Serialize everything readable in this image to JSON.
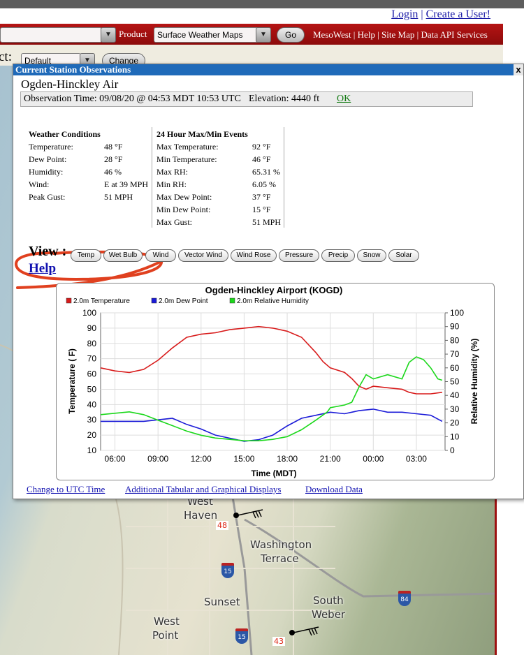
{
  "header": {
    "login": "Login",
    "create_user": "Create a User!",
    "product_label": "Product",
    "product_value": "Surface Weather Maps",
    "go": "Go",
    "links": "MesoWest | Help | Site Map | Data API Services",
    "select_label": "ct:",
    "select_value": "Default",
    "change": "Change"
  },
  "popup": {
    "title": "Current Station Observations",
    "close": "x",
    "station_name": "Ogden-Hinckley Air",
    "obs_time": "Observation Time: 09/08/20 @ 04:53 MDT  10:53 UTC",
    "elevation": "Elevation: 4440 ft",
    "ok": "OK",
    "conditions_header": "Weather Conditions",
    "conditions": [
      {
        "label": "Temperature:",
        "value": "48 °F"
      },
      {
        "label": "Dew Point:",
        "value": "28 °F"
      },
      {
        "label": "Humidity:",
        "value": "46 %"
      },
      {
        "label": "Wind:",
        "value": "E at 39 MPH"
      },
      {
        "label": "Peak Gust:",
        "value": "51 MPH"
      }
    ],
    "events_header": "24 Hour Max/Min Events",
    "events": [
      {
        "label": "Max Temperature:",
        "value": "92 °F"
      },
      {
        "label": "Min Temperature:",
        "value": "46 °F"
      },
      {
        "label": "Max RH:",
        "value": "65.31 %"
      },
      {
        "label": "Min RH:",
        "value": "6.05 %"
      },
      {
        "label": "Max Dew Point:",
        "value": "37 °F"
      },
      {
        "label": "Min Dew Point:",
        "value": "15 °F"
      },
      {
        "label": "Max Gust:",
        "value": "51 MPH"
      }
    ],
    "view_label": "View :",
    "view_buttons": [
      "Temp",
      "Wet Bulb",
      "Wind",
      "Vector Wind",
      "Wind Rose",
      "Pressure",
      "Precip",
      "Snow",
      "Solar"
    ],
    "help": "Help",
    "bottom_links": [
      "Change to UTC Time",
      "Additional Tabular and Graphical Displays",
      "Download Data"
    ]
  },
  "map": {
    "labels": [
      "West",
      "Haven",
      "Washington",
      "Terrace",
      "Sunset",
      "South",
      "Weber",
      "West",
      "Point"
    ],
    "markers": [
      "48",
      "43"
    ],
    "shields": [
      "15",
      "15",
      "84"
    ]
  },
  "chart_data": {
    "type": "line",
    "title": "Ogden-Hinckley Airport (KOGD)",
    "xlabel": "Time (MDT)",
    "ylabel": "Temperature ( F)",
    "y2label": "Relative Humidity (%)",
    "x_ticks": [
      "06:00",
      "09:00",
      "12:00",
      "15:00",
      "18:00",
      "21:00",
      "00:00",
      "03:00"
    ],
    "y_ticks": [
      10,
      20,
      30,
      40,
      50,
      60,
      70,
      80,
      90,
      100
    ],
    "y2_ticks": [
      0,
      10,
      20,
      30,
      40,
      50,
      60,
      70,
      80,
      90,
      100
    ],
    "ylim": [
      10,
      100
    ],
    "y2lim": [
      0,
      100
    ],
    "xlim_hours": [
      5,
      29
    ],
    "grid": true,
    "legend_position": "top-left",
    "colors": {
      "temp": "#d81b1b",
      "dew": "#1b1bd8",
      "rh": "#1bd81b"
    },
    "series": [
      {
        "name": "2.0m Temperature",
        "axis": "left",
        "x": [
          5.0,
          6.0,
          7.0,
          8.0,
          9.0,
          10.0,
          11.0,
          12.0,
          13.0,
          14.0,
          15.0,
          16.0,
          17.0,
          18.0,
          19.0,
          20.0,
          20.5,
          21.0,
          22.0,
          22.5,
          23.0,
          23.5,
          24.0,
          25.0,
          26.0,
          26.5,
          27.0,
          28.0,
          28.8
        ],
        "y": [
          64,
          62,
          61,
          63,
          69,
          77,
          84,
          86,
          87,
          89,
          90,
          91,
          90,
          88,
          84,
          74,
          68,
          64,
          61,
          57,
          52,
          50,
          52,
          51,
          50,
          48,
          47,
          47,
          48
        ]
      },
      {
        "name": "2.0m Dew Point",
        "axis": "left",
        "x": [
          5.0,
          6.0,
          7.0,
          8.0,
          9.0,
          10.0,
          11.0,
          12.0,
          13.0,
          14.0,
          15.0,
          16.0,
          17.0,
          18.0,
          19.0,
          20.0,
          21.0,
          22.0,
          23.0,
          24.0,
          25.0,
          26.0,
          27.0,
          28.0,
          28.8
        ],
        "y": [
          29,
          29,
          29,
          29,
          30,
          31,
          27,
          24,
          20,
          18,
          16,
          17,
          20,
          26,
          31,
          33,
          35,
          34,
          36,
          37,
          35,
          35,
          34,
          33,
          29
        ]
      },
      {
        "name": "2.0m Relative Humidity",
        "axis": "right",
        "x": [
          5.0,
          6.0,
          7.0,
          8.0,
          9.0,
          10.0,
          11.0,
          12.0,
          13.0,
          14.0,
          15.0,
          16.0,
          17.0,
          18.0,
          19.0,
          20.0,
          20.8,
          21.0,
          22.0,
          22.5,
          23.0,
          23.5,
          24.0,
          25.0,
          26.0,
          26.5,
          27.0,
          27.5,
          28.0,
          28.5,
          28.8
        ],
        "y": [
          26,
          27,
          28,
          26,
          22,
          18,
          14,
          11,
          9,
          8,
          7,
          7,
          8,
          10,
          15,
          22,
          28,
          31,
          33,
          35,
          46,
          55,
          52,
          55,
          52,
          64,
          68,
          66,
          60,
          52,
          51
        ]
      }
    ]
  }
}
